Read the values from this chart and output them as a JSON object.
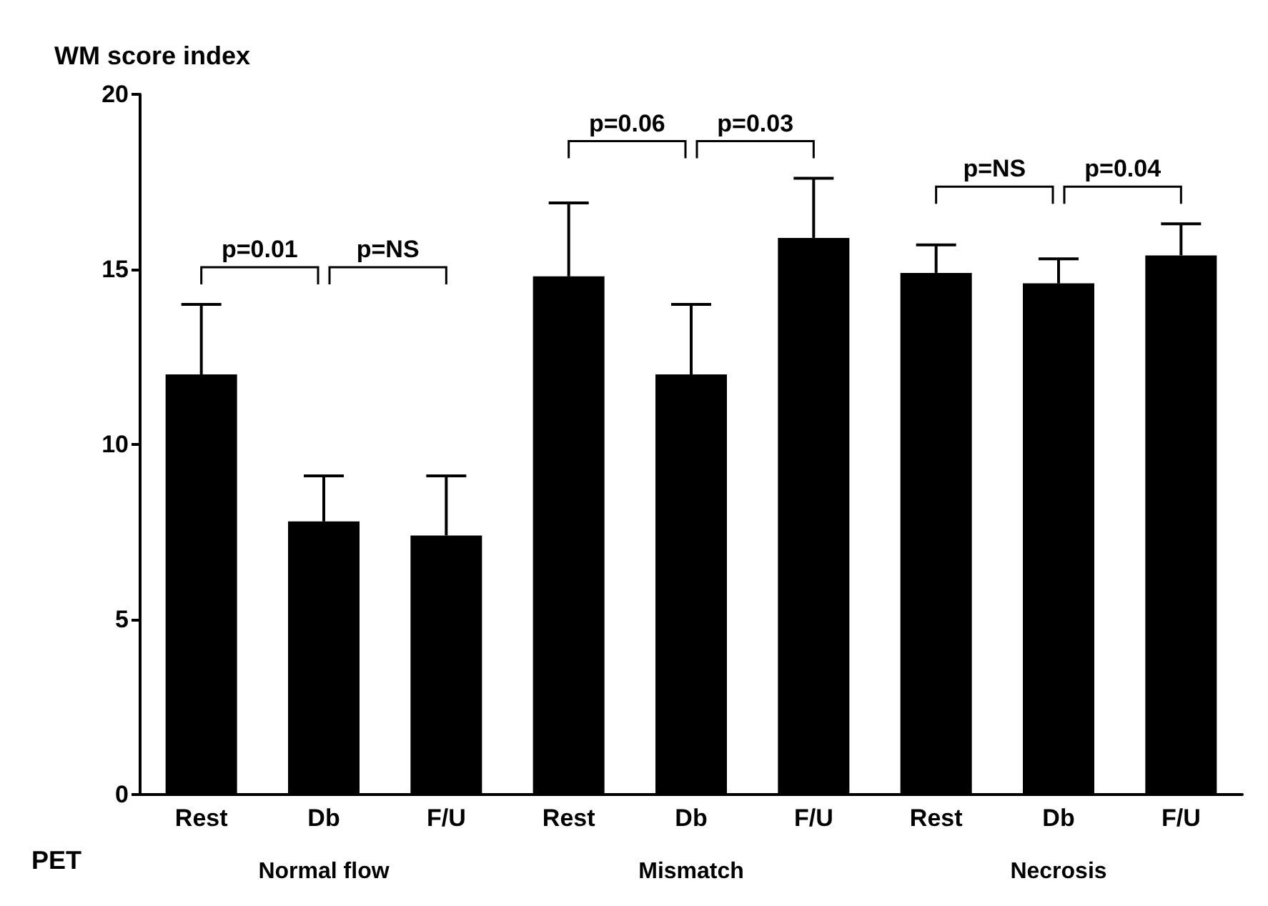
{
  "chart_data": {
    "type": "bar",
    "ylabel": "WM score index",
    "categories": [
      "Rest",
      "Db",
      "F/U",
      "Rest",
      "Db",
      "F/U",
      "Rest",
      "Db",
      "F/U"
    ],
    "values": [
      12.0,
      7.8,
      7.4,
      14.8,
      12.0,
      15.9,
      14.9,
      14.6,
      15.4
    ],
    "errors": [
      [
        12.0,
        14.0
      ],
      [
        7.8,
        9.1
      ],
      [
        7.4,
        9.1
      ],
      [
        14.8,
        16.9
      ],
      [
        12.0,
        14.0
      ],
      [
        15.9,
        17.6
      ],
      [
        14.9,
        15.7
      ],
      [
        14.6,
        15.3
      ],
      [
        15.4,
        16.3
      ]
    ],
    "color": "#000000",
    "ylim": [
      0,
      20
    ],
    "yticks": [
      0,
      5,
      10,
      15,
      20
    ],
    "grid": false,
    "annotations": [
      "p=0.01",
      "p=NS",
      "p=0.06",
      "p=0.03",
      "p=NS",
      "p=0.04",
      "Normal flow",
      "Mismatch",
      "Necrosis",
      "PET"
    ]
  }
}
